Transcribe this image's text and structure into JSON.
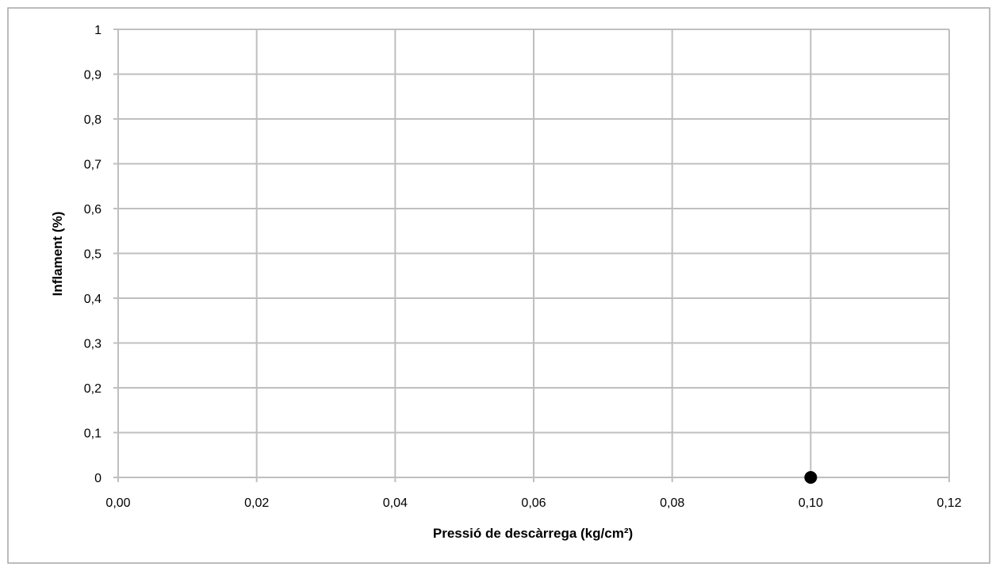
{
  "chart_data": {
    "type": "scatter",
    "title": "",
    "xlabel": "Pressió de descàrrega (kg/cm²)",
    "ylabel": "Inflament (%)",
    "xlim": [
      0,
      0.12
    ],
    "ylim": [
      0,
      1
    ],
    "x_ticks": [
      "0,00",
      "0,02",
      "0,04",
      "0,06",
      "0,08",
      "0,10",
      "0,12"
    ],
    "y_ticks": [
      "0",
      "0,1",
      "0,2",
      "0,3",
      "0,4",
      "0,5",
      "0,6",
      "0,7",
      "0,8",
      "0,9",
      "1"
    ],
    "grid": true,
    "legend": "none",
    "series": [
      {
        "x": [
          0.1
        ],
        "y": [
          0
        ],
        "color": "#000000",
        "marker": "circle"
      }
    ],
    "colors": {
      "grid": "#bfbfbf",
      "frame": "#a6a6a6",
      "marker": "#000000"
    }
  }
}
